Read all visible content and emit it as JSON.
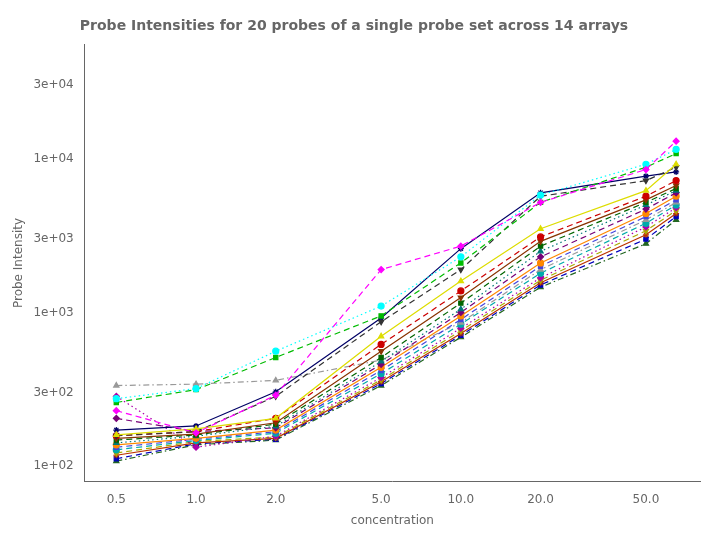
{
  "chart_data": {
    "type": "line",
    "title": "Probe Intensities for 20 probes of a single probe set across 14 arrays",
    "xlabel": "concentration",
    "ylabel": "Probe Intensity",
    "log": true,
    "grid": false,
    "x": [
      0.5,
      1.0,
      2.0,
      5.0,
      10.0,
      20.0,
      50.0,
      65.0
    ],
    "xlim": [
      0.38,
      80
    ],
    "xticks": [
      0.5,
      {
        "value": 1.0,
        "label": "1.0"
      },
      {
        "value": 2.0,
        "label": "2.0"
      },
      {
        "value": 5.0,
        "label": "5.0"
      },
      {
        "value": 10.0,
        "label": "10.0"
      },
      {
        "value": 20.0,
        "label": "20.0"
      },
      {
        "value": 50.0,
        "label": "50.0"
      }
    ],
    "ylim": [
      80,
      55000
    ],
    "yticks": [
      {
        "value": 100,
        "label": "1e+02"
      },
      {
        "value": 300,
        "label": "3e+02"
      },
      {
        "value": 1000,
        "label": "1e+03"
      },
      {
        "value": 3000,
        "label": "3e+03"
      },
      {
        "value": 10000,
        "label": "1e+04"
      },
      {
        "value": 30000,
        "label": "3e+04"
      }
    ],
    "series": [
      {
        "color": "#FF00FF",
        "marker": "diamond",
        "line_style": "dashed",
        "values": [
          230,
          165,
          290,
          1900,
          2700,
          5200,
          8500,
          13000
        ]
      },
      {
        "color": "#00FFFF",
        "marker": "circle",
        "line_style": "dotted",
        "values": [
          275,
          320,
          560,
          1100,
          2300,
          5800,
          9200,
          11500
        ]
      },
      {
        "color": "#00BB00",
        "marker": "square",
        "line_style": "dashed",
        "values": [
          260,
          315,
          510,
          950,
          2100,
          5200,
          8800,
          10800
        ]
      },
      {
        "color": "#DDDD00",
        "marker": "triangle_up",
        "line_style": "solid",
        "values": [
          160,
          175,
          205,
          700,
          1600,
          3500,
          6200,
          9200
        ]
      },
      {
        "color": "#333333",
        "marker": "triangle_down",
        "line_style": "dashed",
        "values": [
          158,
          168,
          285,
          870,
          1900,
          5700,
          7200,
          8800
        ]
      },
      {
        "color": "#000066",
        "marker": "star",
        "line_style": "solid",
        "values": [
          172,
          183,
          305,
          920,
          2600,
          6000,
          7700,
          8200
        ]
      },
      {
        "color": "#CC0000",
        "marker": "circle",
        "line_style": "dashed",
        "values": [
          158,
          168,
          205,
          620,
          1380,
          3100,
          5700,
          7200
        ]
      },
      {
        "color": "#883300",
        "marker": "triangle_down",
        "line_style": "solid",
        "values": [
          152,
          162,
          192,
          560,
          1250,
          2900,
          5400,
          6700
        ]
      },
      {
        "color": "#006600",
        "marker": "square",
        "line_style": "dashed",
        "values": [
          148,
          160,
          188,
          510,
          1150,
          2700,
          5200,
          6400
        ]
      },
      {
        "color": "#007777",
        "marker": "triangle_up",
        "line_style": "dotted",
        "values": [
          142,
          157,
          182,
          480,
          1050,
          2500,
          5000,
          6200
        ]
      },
      {
        "color": "#770077",
        "marker": "diamond",
        "line_style": "dashed",
        "values": [
          205,
          168,
          178,
          460,
          1000,
          2300,
          4700,
          6000
        ]
      },
      {
        "color": "#FF8800",
        "marker": "circle",
        "line_style": "solid",
        "values": [
          138,
          152,
          172,
          440,
          950,
          2100,
          4400,
          5700
        ]
      },
      {
        "color": "#4444DD",
        "marker": "square",
        "line_style": "dashed",
        "values": [
          133,
          150,
          168,
          420,
          900,
          2000,
          4200,
          5400
        ]
      },
      {
        "color": "#999999",
        "marker": "triangle_up",
        "line_style": "dashdot",
        "values": [
          335,
          342,
          362,
          490,
          860,
          1900,
          4000,
          5200
        ]
      },
      {
        "color": "#00AAAA",
        "marker": "circle",
        "line_style": "dashed",
        "values": [
          128,
          147,
          164,
          400,
          840,
          1800,
          3800,
          5000
        ]
      },
      {
        "color": "#AA00AA",
        "marker": "diamond",
        "line_style": "dotted",
        "values": [
          285,
          133,
          157,
          378,
          790,
          1680,
          3600,
          4800
        ]
      },
      {
        "color": "#AAAA00",
        "marker": "triangle_down",
        "line_style": "dashed",
        "values": [
          122,
          145,
          155,
          365,
          760,
          1620,
          3400,
          4600
        ]
      },
      {
        "color": "#BB3300",
        "marker": "star",
        "line_style": "solid",
        "values": [
          118,
          142,
          152,
          355,
          730,
          1560,
          3200,
          4400
        ]
      },
      {
        "color": "#0000BB",
        "marker": "square",
        "line_style": "dashed",
        "values": [
          112,
          140,
          150,
          345,
          710,
          1510,
          3000,
          4200
        ]
      },
      {
        "color": "#226622",
        "marker": "triangle_up",
        "line_style": "dashdot",
        "values": [
          108,
          138,
          148,
          335,
          690,
          1460,
          2800,
          4000
        ]
      }
    ]
  }
}
